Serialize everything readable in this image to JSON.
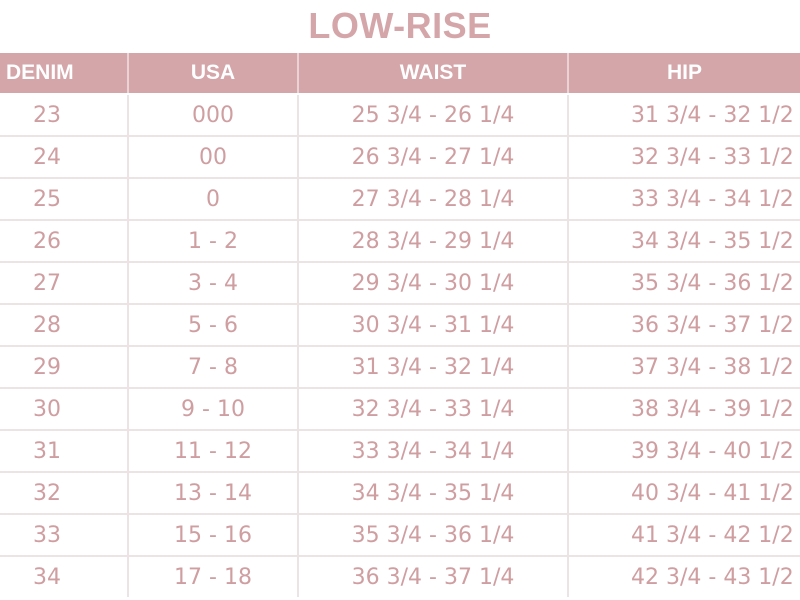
{
  "title": "LOW-RISE",
  "headers": {
    "denim": "DENIM",
    "usa": "USA",
    "waist": "WAIST",
    "hip": "HIP"
  },
  "rows": [
    {
      "denim": "23",
      "usa": "000",
      "waist": "25 3/4 - 26 1/4",
      "hip": "31 3/4 - 32 1/2"
    },
    {
      "denim": "24",
      "usa": "00",
      "waist": "26 3/4 - 27 1/4",
      "hip": "32 3/4 - 33 1/2"
    },
    {
      "denim": "25",
      "usa": "0",
      "waist": "27 3/4 - 28 1/4",
      "hip": "33 3/4 - 34 1/2"
    },
    {
      "denim": "26",
      "usa": "1 - 2",
      "waist": "28 3/4 - 29 1/4",
      "hip": "34 3/4 - 35 1/2"
    },
    {
      "denim": "27",
      "usa": "3 - 4",
      "waist": "29 3/4 - 30 1/4",
      "hip": "35 3/4 - 36 1/2"
    },
    {
      "denim": "28",
      "usa": "5 - 6",
      "waist": "30 3/4 - 31 1/4",
      "hip": "36 3/4 - 37 1/2"
    },
    {
      "denim": "29",
      "usa": "7 - 8",
      "waist": "31 3/4 - 32 1/4",
      "hip": "37 3/4 - 38 1/2"
    },
    {
      "denim": "30",
      "usa": "9 - 10",
      "waist": "32 3/4 - 33 1/4",
      "hip": "38 3/4 - 39 1/2"
    },
    {
      "denim": "31",
      "usa": "11 - 12",
      "waist": "33 3/4 - 34 1/4",
      "hip": "39 3/4 - 40 1/2"
    },
    {
      "denim": "32",
      "usa": "13 - 14",
      "waist": "34 3/4 - 35 1/4",
      "hip": "40 3/4 - 41 1/2"
    },
    {
      "denim": "33",
      "usa": "15 - 16",
      "waist": "35 3/4 - 36 1/4",
      "hip": "41 3/4 - 42 1/2"
    },
    {
      "denim": "34",
      "usa": "17 - 18",
      "waist": "36 3/4 - 37 1/4",
      "hip": "42 3/4 - 43 1/2"
    }
  ],
  "colors": {
    "accent": "#d4a6a9",
    "text": "#cf9ea1",
    "grid": "#ece4e4",
    "background": "#ffffff"
  }
}
